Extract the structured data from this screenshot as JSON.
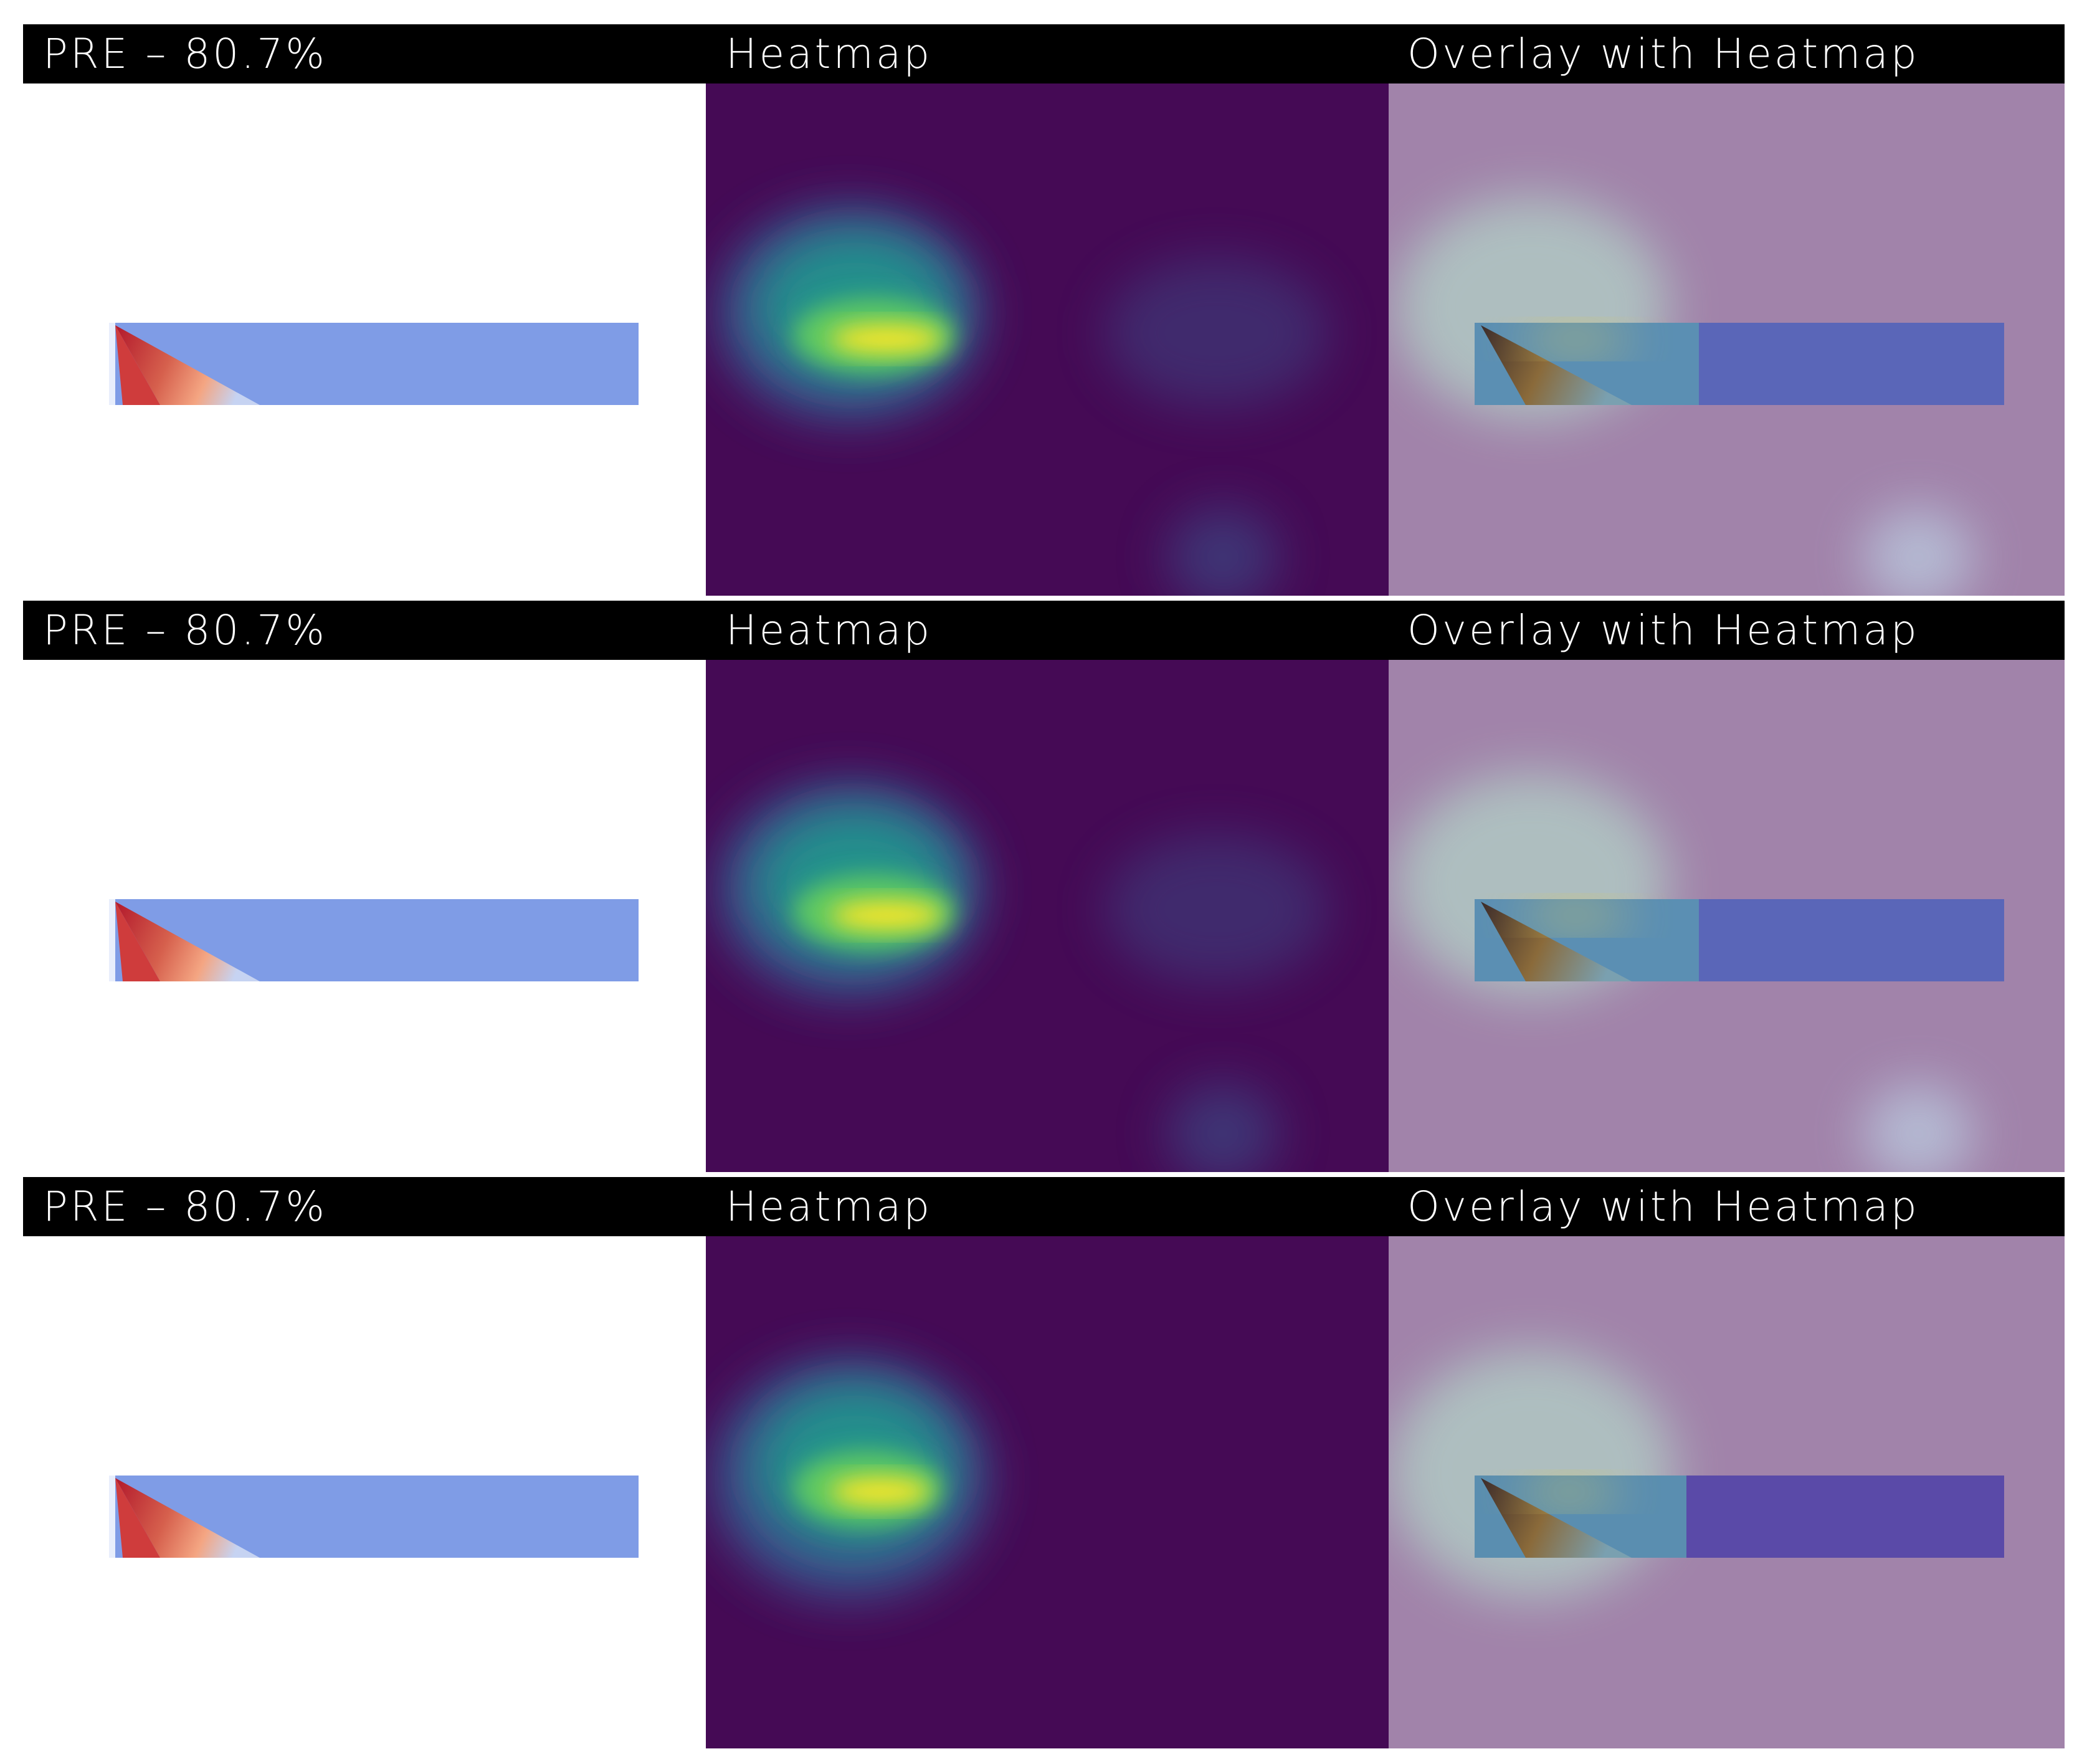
{
  "rows": [
    {
      "label": "PRE – 80.7%",
      "heatmap_label": "Heatmap",
      "overlay_label": "Overlay with Heatmap",
      "secondary_hotspot": true
    },
    {
      "label": "PRE – 80.7%",
      "heatmap_label": "Heatmap",
      "overlay_label": "Overlay with Heatmap",
      "secondary_hotspot": true
    },
    {
      "label": "PRE – 80.7%",
      "heatmap_label": "Heatmap",
      "overlay_label": "Overlay with Heatmap",
      "secondary_hotspot": false
    }
  ],
  "colors": {
    "label_bar": "#000000",
    "label_text": "#ffffff",
    "heatmap_background": "#450a55",
    "overlay_background": "#a183aa",
    "beam_fill": "#7f9ce6",
    "beam_stress": "#b2182b"
  }
}
